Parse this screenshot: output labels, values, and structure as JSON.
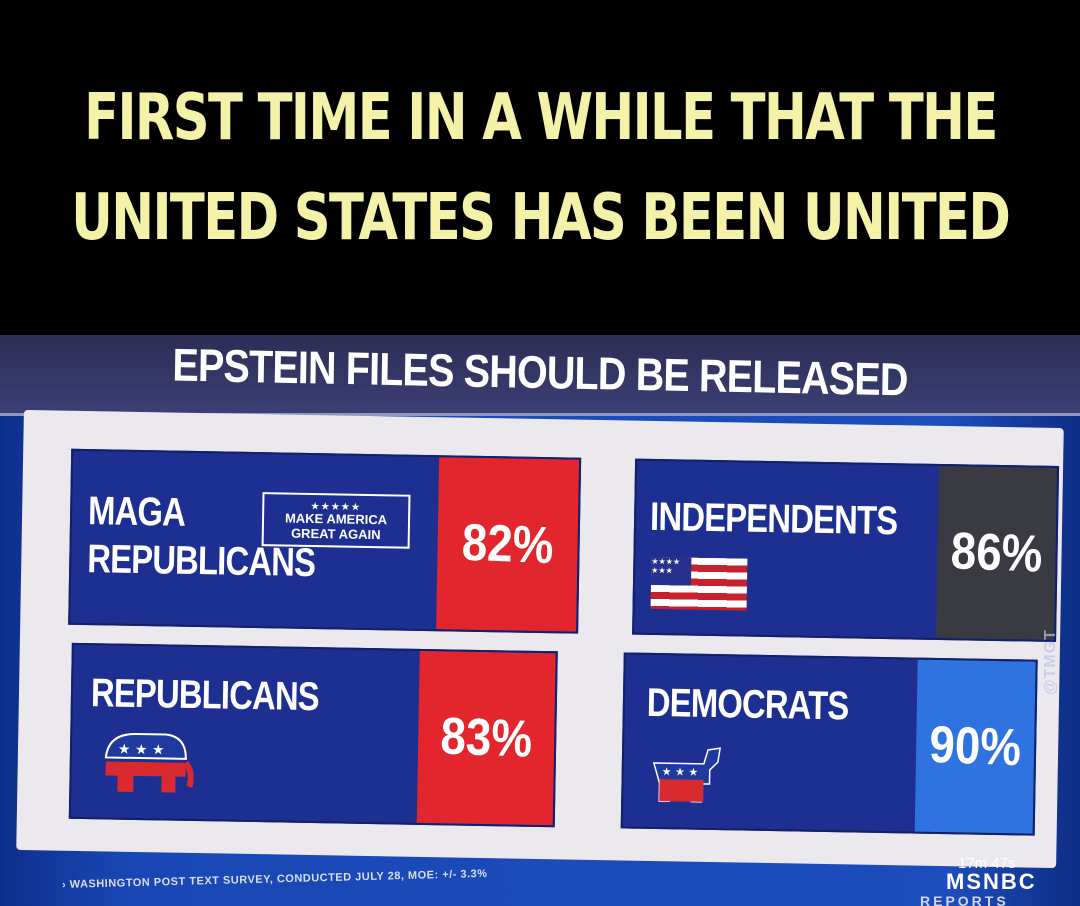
{
  "caption": {
    "line1": "FIRST TIME IN A WHILE THAT THE",
    "line2": "UNITED STATES HAS BEEN UNITED"
  },
  "broadcast": {
    "title": "EPSTEIN FILES SHOULD BE RELEASED",
    "cards": [
      {
        "line1": "MAGA",
        "line2": "REPUBLICANS",
        "badge_line1": "MAKE AMERICA",
        "badge_line2": "GREAT AGAIN",
        "badge_stars": "★★★★★",
        "value": "82%",
        "value_color": "#e3262d",
        "icon": "maga-hat-logo"
      },
      {
        "label": "INDEPENDENTS",
        "value": "86%",
        "value_color": "#3a3a42",
        "icon": "us-flag-icon"
      },
      {
        "label": "REPUBLICANS",
        "value": "83%",
        "value_color": "#e3262d",
        "icon": "gop-elephant-icon"
      },
      {
        "label": "DEMOCRATS",
        "value": "90%",
        "value_color": "#2f73e0",
        "icon": "democrat-donkey-icon"
      }
    ],
    "source": "› WASHINGTON POST TEXT SURVEY, CONDUCTED JULY 28, MOE: +/- 3.3%",
    "timer": "17m 47s",
    "network": "MSNBC",
    "segment": "REPORTS",
    "watermark": "@TMGT"
  },
  "colors": {
    "caption_text": "#f4f1a8",
    "card_blue": "#1e2f92",
    "red": "#e3262d",
    "dark": "#3a3a42",
    "blue": "#2f73e0"
  }
}
